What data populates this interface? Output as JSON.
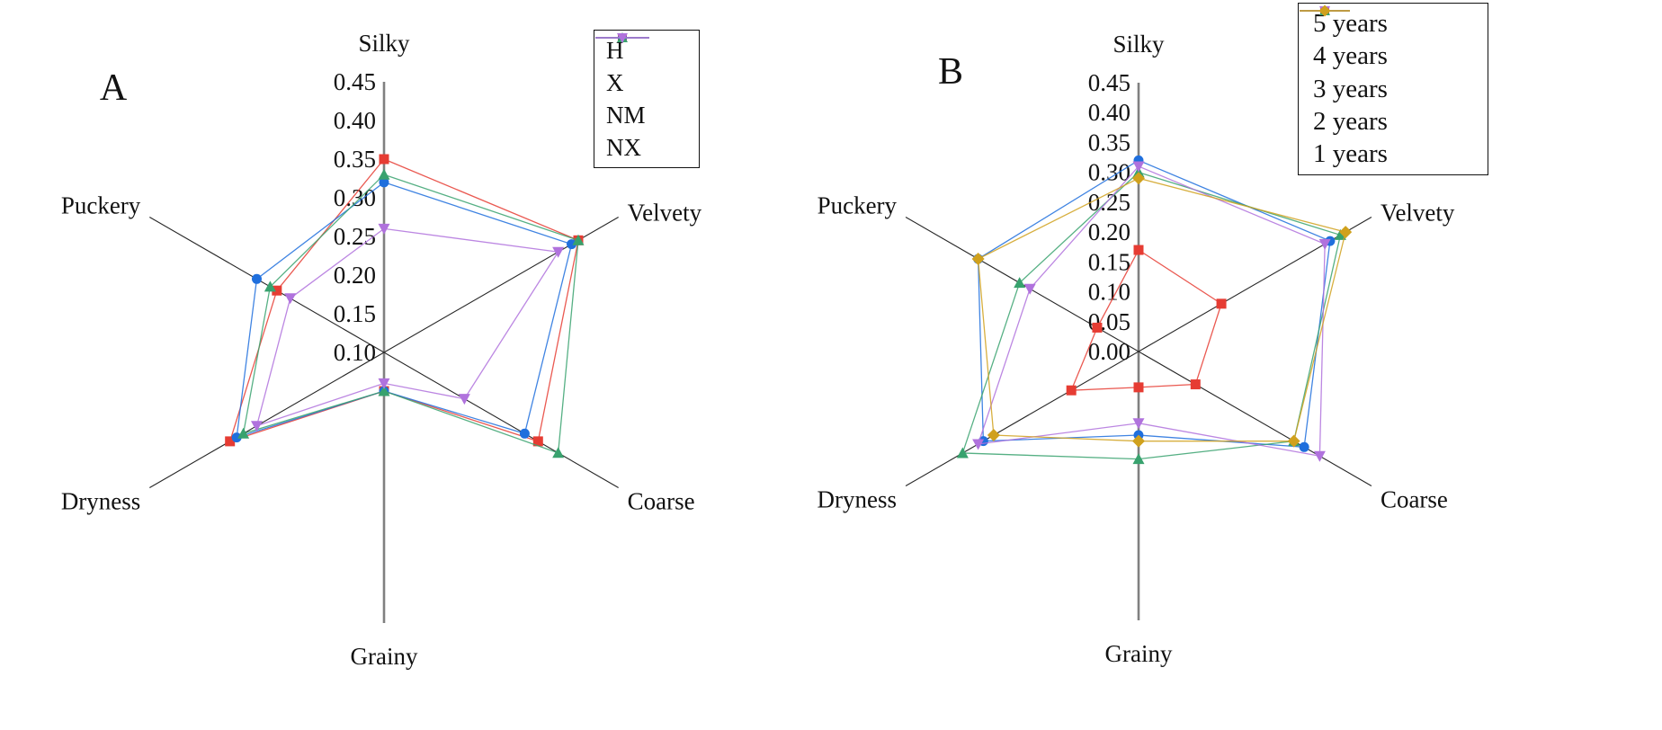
{
  "figure": {
    "background": "#ffffff",
    "panels": [
      {
        "label": "A"
      },
      {
        "label": "B"
      }
    ]
  },
  "chart_data": [
    {
      "id": "A",
      "type": "radar",
      "panel_label": "A",
      "axes": [
        "Silky",
        "Velvety",
        "Coarse",
        "Grainy",
        "Dryness",
        "Puckery"
      ],
      "r_min": 0.1,
      "r_max": 0.45,
      "r_step": 0.05,
      "tick_labels": [
        "0.45",
        "0.40",
        "0.35",
        "0.30",
        "0.25",
        "0.20",
        "0.15",
        "0.10"
      ],
      "grid": false,
      "legend_position": "top-right-outside",
      "series": [
        {
          "name": "H",
          "color": "#e63c33",
          "marker": "square",
          "values": [
            0.35,
            0.39,
            0.33,
            0.15,
            0.33,
            0.26
          ]
        },
        {
          "name": "X",
          "color": "#1f6fdd",
          "marker": "circle",
          "values": [
            0.32,
            0.38,
            0.31,
            0.15,
            0.32,
            0.29
          ]
        },
        {
          "name": "NM",
          "color": "#38a26e",
          "marker": "triangle-up",
          "values": [
            0.33,
            0.39,
            0.36,
            0.15,
            0.31,
            0.27
          ]
        },
        {
          "name": "NX",
          "color": "#b072dd",
          "marker": "triangle-down",
          "values": [
            0.26,
            0.36,
            0.22,
            0.14,
            0.29,
            0.24
          ]
        }
      ]
    },
    {
      "id": "B",
      "type": "radar",
      "panel_label": "B",
      "axes": [
        "Silky",
        "Velvety",
        "Coarse",
        "Grainy",
        "Dryness",
        "Puckery"
      ],
      "r_min": 0.0,
      "r_max": 0.45,
      "r_step": 0.05,
      "tick_labels": [
        "0.45",
        "0.40",
        "0.35",
        "0.30",
        "0.25",
        "0.20",
        "0.15",
        "0.10",
        "0.05",
        "0.00"
      ],
      "grid": false,
      "legend_position": "top-right-outside",
      "series": [
        {
          "name": "5 years",
          "color": "#e63c33",
          "marker": "square",
          "values": [
            0.17,
            0.16,
            0.11,
            0.06,
            0.13,
            0.08
          ]
        },
        {
          "name": "4 years",
          "color": "#1f6fdd",
          "marker": "circle",
          "values": [
            0.32,
            0.37,
            0.32,
            0.14,
            0.3,
            0.31
          ]
        },
        {
          "name": "3 years",
          "color": "#38a26e",
          "marker": "triangle-up",
          "values": [
            0.3,
            0.39,
            0.3,
            0.18,
            0.34,
            0.23
          ]
        },
        {
          "name": "2 years",
          "color": "#b072dd",
          "marker": "triangle-down",
          "values": [
            0.31,
            0.36,
            0.35,
            0.12,
            0.31,
            0.21
          ]
        },
        {
          "name": "1 years",
          "color": "#d0a11d",
          "marker": "diamond",
          "values": [
            0.29,
            0.4,
            0.3,
            0.15,
            0.28,
            0.31
          ]
        }
      ]
    }
  ],
  "style_colors": {
    "vertical_axis": "#808080",
    "diagonal_axis": "#262626",
    "text": "#111111"
  }
}
